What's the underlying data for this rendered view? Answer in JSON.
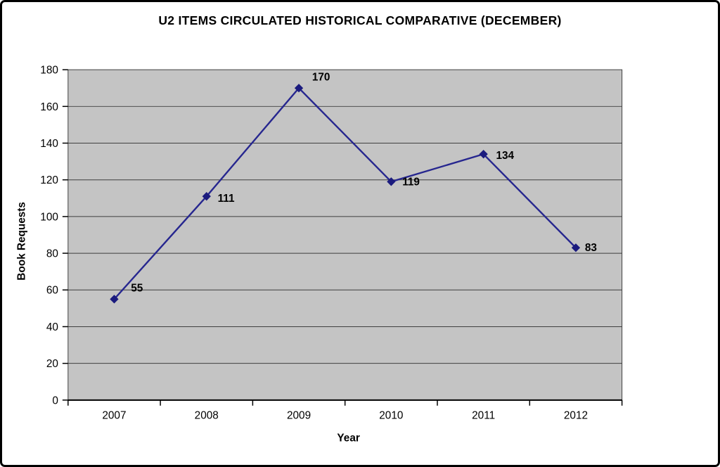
{
  "chart_data": {
    "type": "line",
    "title": "U2 ITEMS CIRCULATED HISTORICAL COMPARATIVE (DECEMBER)",
    "xlabel": "Year",
    "ylabel": "Book Requests",
    "categories": [
      "2007",
      "2008",
      "2009",
      "2010",
      "2011",
      "2012"
    ],
    "series": [
      {
        "name": "Book Requests",
        "values": [
          55,
          111,
          170,
          119,
          134,
          83
        ]
      }
    ],
    "point_labels": [
      "55",
      "111",
      "170",
      "119",
      "134",
      "83"
    ],
    "ylim": [
      0,
      180
    ],
    "yticks": [
      0,
      20,
      40,
      60,
      80,
      100,
      120,
      140,
      160,
      180
    ],
    "grid": "horizontal",
    "legend": "none",
    "marker": "diamond",
    "colors": {
      "line": "#26268F",
      "marker": "#1B1B7E",
      "plot_background": "#C4C4C4",
      "gridline": "#3F3F3F",
      "plot_border": "#3F3F3F",
      "axis": "#000000",
      "text": "#000000",
      "page_background": "#FFFFFF",
      "frame_border": "#000000"
    }
  }
}
